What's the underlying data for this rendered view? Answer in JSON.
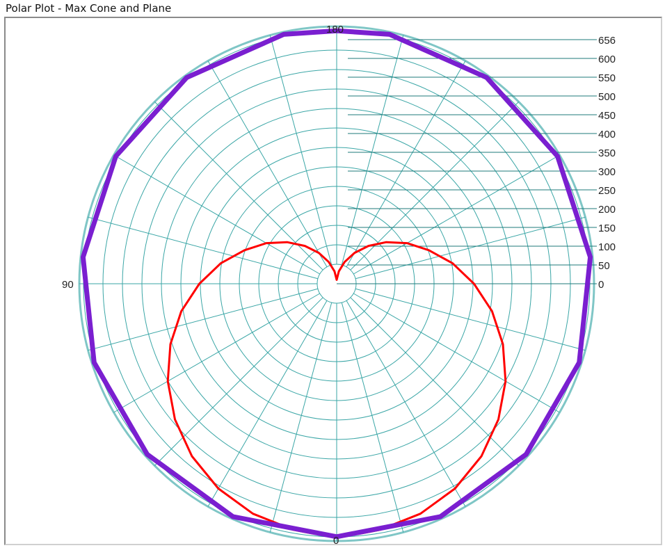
{
  "window": {
    "title": "Polar Plot - Max Cone and Plane"
  },
  "chart_data": {
    "type": "line",
    "coordinate_system": "polar",
    "title": "",
    "angle_labels": [
      "180",
      "90",
      "0"
    ],
    "radial_ticks": [
      "0",
      "50",
      "100",
      "150",
      "200",
      "250",
      "300",
      "350",
      "400",
      "450",
      "500",
      "550",
      "600",
      "656"
    ],
    "radial_range": [
      0,
      656
    ],
    "angle_rays_every_deg": 15,
    "grid": true,
    "colors": {
      "grid": "#3aa6a6",
      "outer_ring": "#7fc6c6",
      "series_1": "#ff0000",
      "series_2": "#7a1fd0"
    },
    "series": [
      {
        "color": "#ff0000",
        "line_width": "thin",
        "theta_deg": [
          -2,
          -5,
          -10,
          -20,
          -30,
          -40,
          -50,
          -60,
          -70,
          -80,
          -90,
          -100,
          -110,
          -120,
          -130,
          -140,
          -150,
          -160,
          -170,
          -180,
          -190,
          -200,
          -210,
          -220,
          -230,
          -240,
          -250,
          -260,
          -270,
          -280,
          -290,
          -300,
          -310,
          -320,
          -330,
          -340,
          -350,
          -355,
          -358
        ],
        "r": [
          641,
          640,
          637,
          624,
          603,
          574,
          538,
          497,
          451,
          402,
          350,
          300,
          250,
          207,
          165,
          126,
          91,
          59,
          32,
          10,
          32,
          59,
          91,
          126,
          165,
          207,
          250,
          300,
          350,
          402,
          451,
          497,
          538,
          574,
          603,
          624,
          637,
          640,
          641
        ]
      },
      {
        "color": "#7a1fd0",
        "line_width": "thick",
        "theta_deg": [
          0,
          24,
          48,
          72,
          96,
          120,
          144,
          168,
          180,
          192,
          216,
          240,
          264,
          288,
          312,
          336,
          360
        ],
        "r": [
          645,
          650,
          650,
          650,
          650,
          650,
          650,
          650,
          645,
          650,
          650,
          650,
          650,
          650,
          650,
          650,
          645
        ]
      }
    ]
  }
}
